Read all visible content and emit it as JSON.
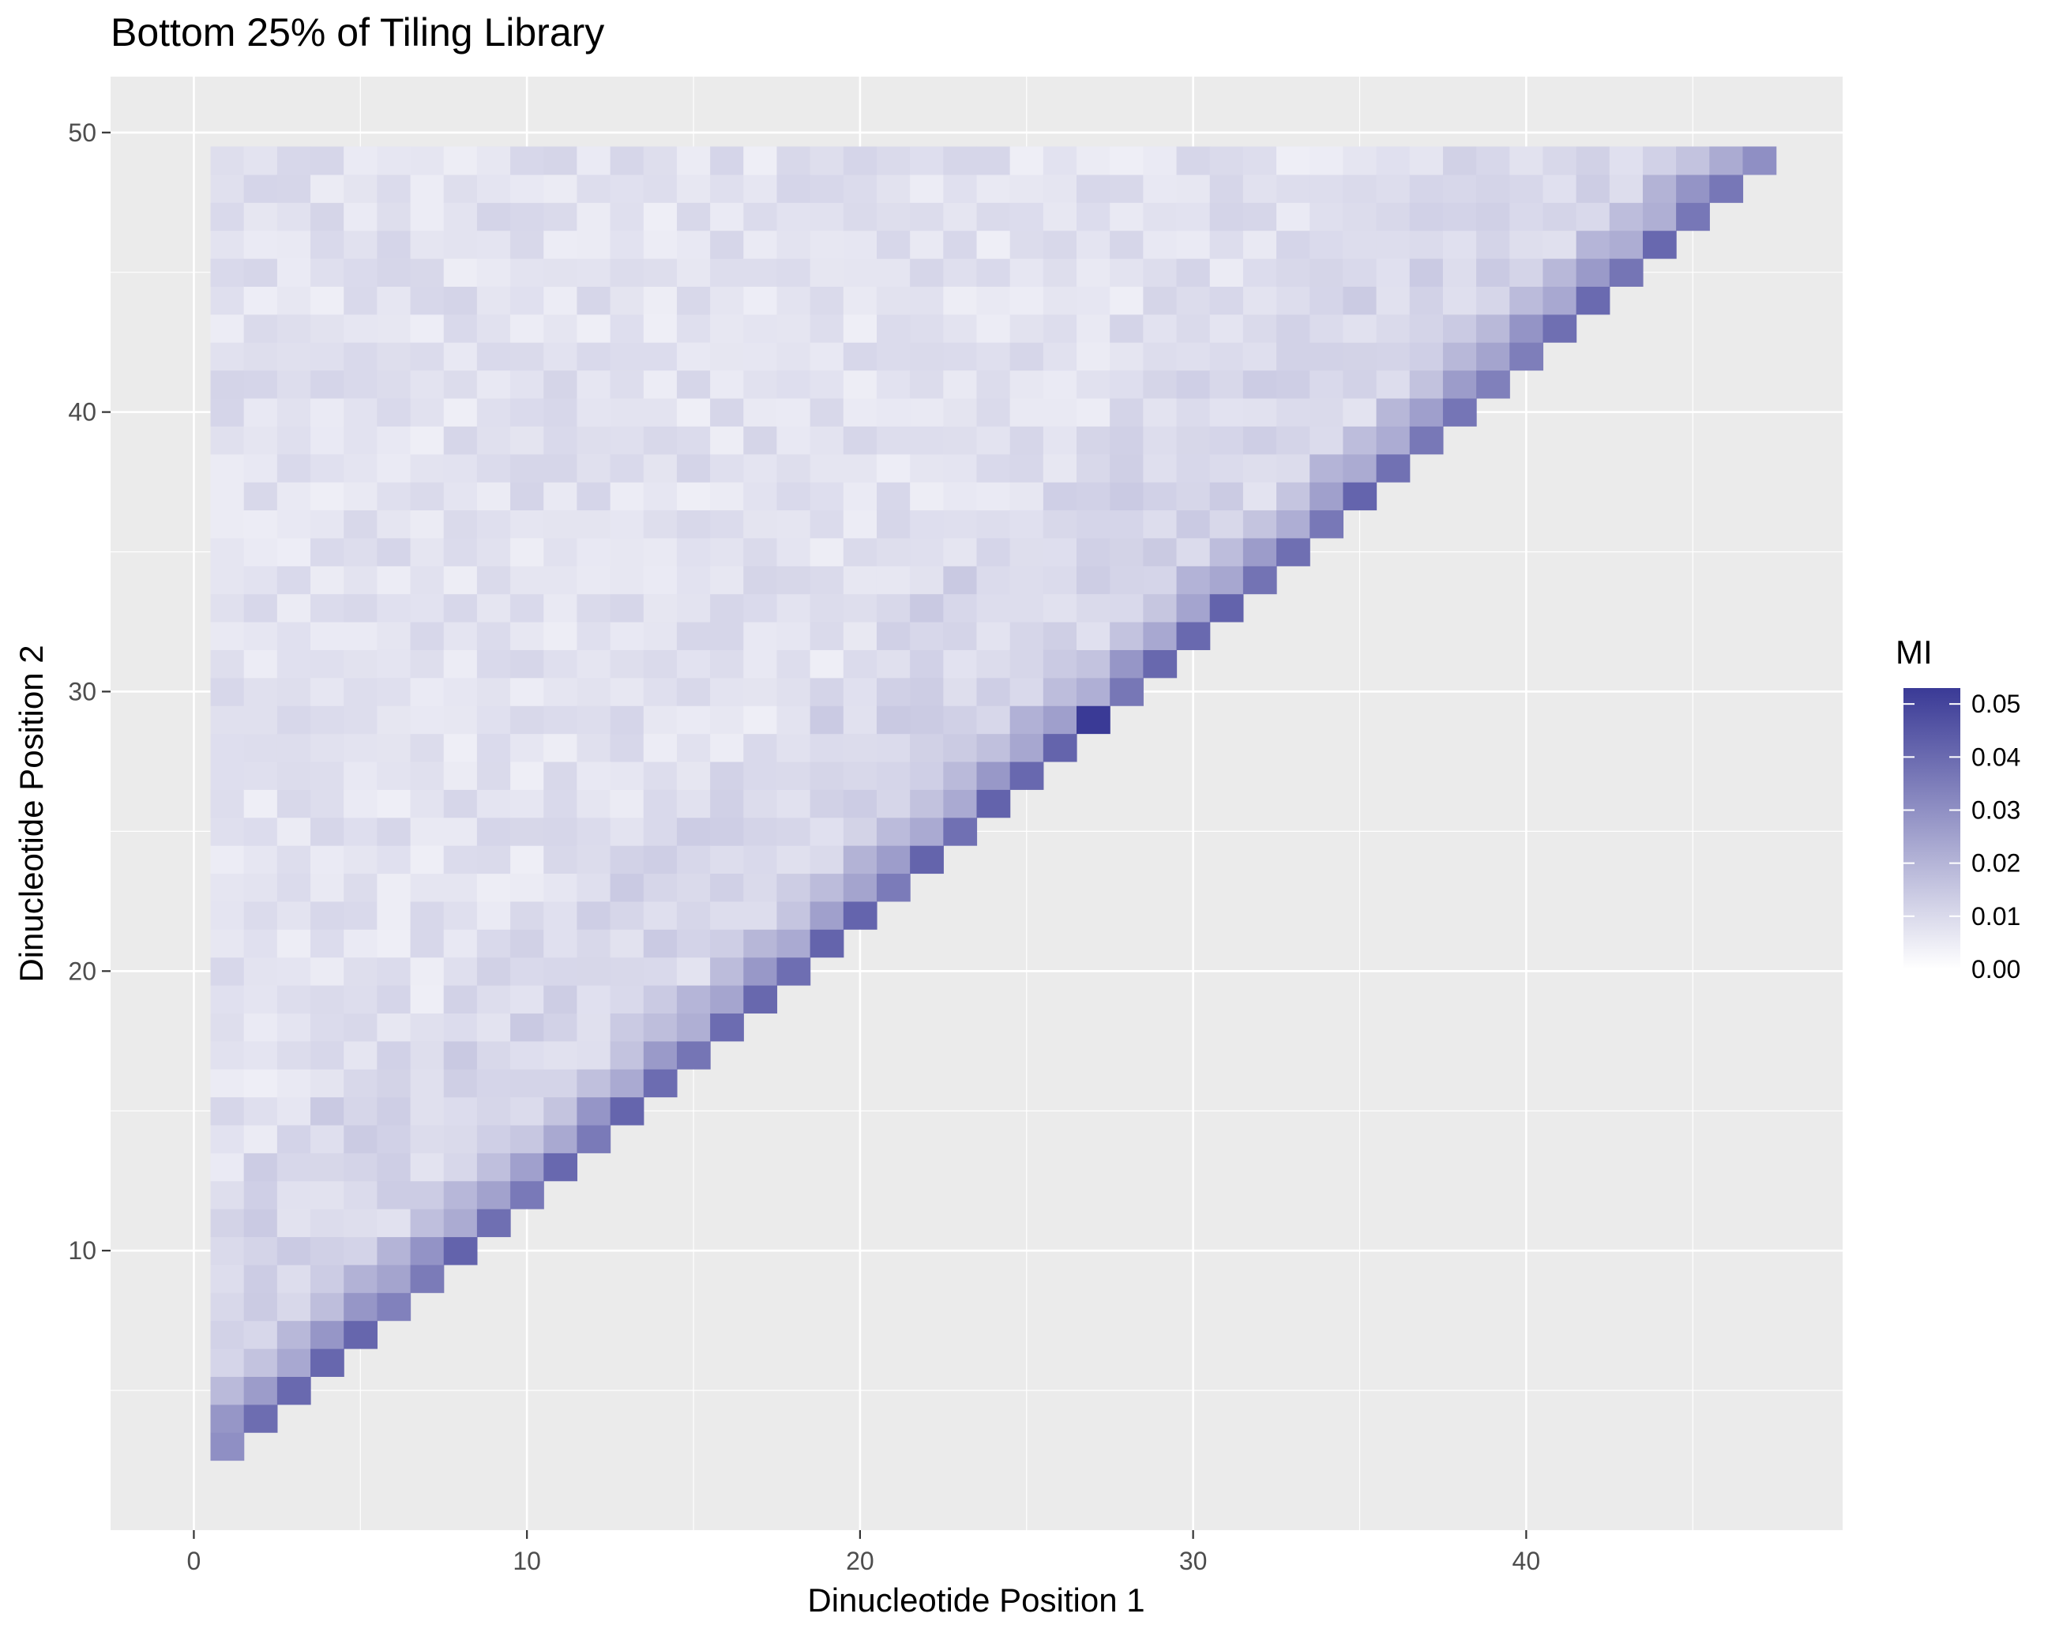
{
  "chart_data": {
    "type": "heatmap",
    "title": "Bottom 25% of Tiling Library",
    "xlabel": "Dinucleotide Position 1",
    "ylabel": "Dinucleotide Position 2",
    "xlim": [
      -2.5,
      49.5
    ],
    "ylim": [
      0,
      52
    ],
    "x_ticks": [
      0,
      10,
      20,
      30,
      40
    ],
    "y_ticks": [
      10,
      20,
      30,
      40,
      50
    ],
    "grid": true,
    "legend": {
      "title": "MI",
      "placement": "right",
      "range": [
        0,
        0.053
      ],
      "ticks": [
        "0.00",
        "0.01",
        "0.02",
        "0.03",
        "0.04",
        "0.05"
      ],
      "colors": {
        "low": "#ffffff",
        "high": "#3a3a96"
      }
    },
    "cells": {
      "i_range": [
        1,
        47
      ],
      "j_range": [
        3,
        49
      ],
      "rule": "j >= i + 2",
      "background_mean_mi": 0.008,
      "diagonal_j_minus_i_2": {
        "default": 0.038,
        "peak": {
          "i": 27,
          "j": 29,
          "mi": 0.053
        }
      },
      "near_diagonal_j_minus_i_3": 0.025,
      "near_diagonal_j_minus_i_4": 0.018
    }
  },
  "colors": {
    "panel_background": "#ebebeb",
    "grid_major": "#ffffff",
    "axis_text": "#4d4d4d",
    "title_text": "#000000"
  }
}
